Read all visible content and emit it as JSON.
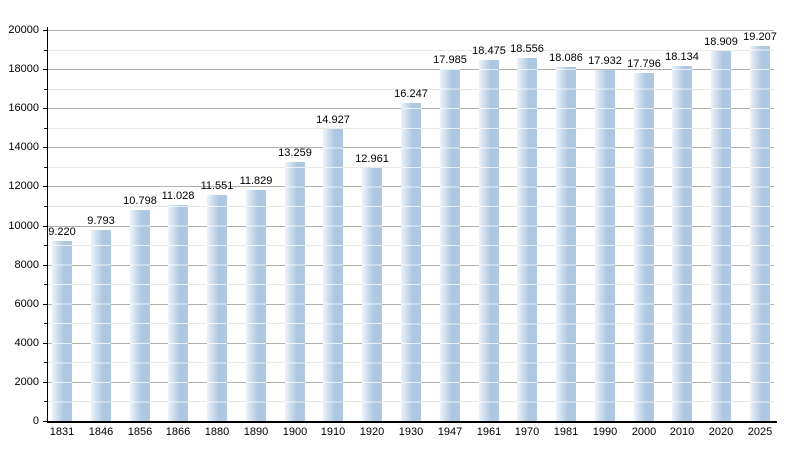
{
  "figure": {
    "background": "#ffffff",
    "text_color": "#000000"
  },
  "chart_data": {
    "type": "bar",
    "title": "",
    "xlabel": "",
    "ylabel": "",
    "categories": [
      "1831",
      "1846",
      "1856",
      "1866",
      "1880",
      "1890",
      "1900",
      "1910",
      "1920",
      "1930",
      "1947",
      "1961",
      "1970",
      "1981",
      "1990",
      "2000",
      "2010",
      "2020",
      "2025"
    ],
    "values": [
      9220,
      9793,
      10798,
      11028,
      11551,
      11829,
      13259,
      14927,
      12961,
      16247,
      17985,
      18475,
      18556,
      18086,
      17932,
      17796,
      18134,
      18909,
      19207
    ],
    "value_labels": [
      "9.220",
      "9.793",
      "10.798",
      "11.028",
      "11.551",
      "11.829",
      "13.259",
      "14.927",
      "12.961",
      "16.247",
      "17.985",
      "18.475",
      "18.556",
      "18.086",
      "17.932",
      "17.796",
      "18.134",
      "18.909",
      "19.207"
    ],
    "ylim": [
      0,
      20000
    ],
    "y_major_step": 2000,
    "y_minor_step": 1000,
    "y_tick_labels": [
      "0",
      "2000",
      "4000",
      "6000",
      "8000",
      "10000",
      "12000",
      "14000",
      "16000",
      "18000",
      "20000"
    ],
    "grid": "horizontal, major every 2000 and minor every 1000",
    "legend": "none",
    "bar_color": "#aec8e2",
    "bar_gradient_left": "#edf3f9",
    "gridline_major_color": "#b0b0b0",
    "gridline_minor_color": "#e8e8e8",
    "axis_color": "#000000"
  }
}
